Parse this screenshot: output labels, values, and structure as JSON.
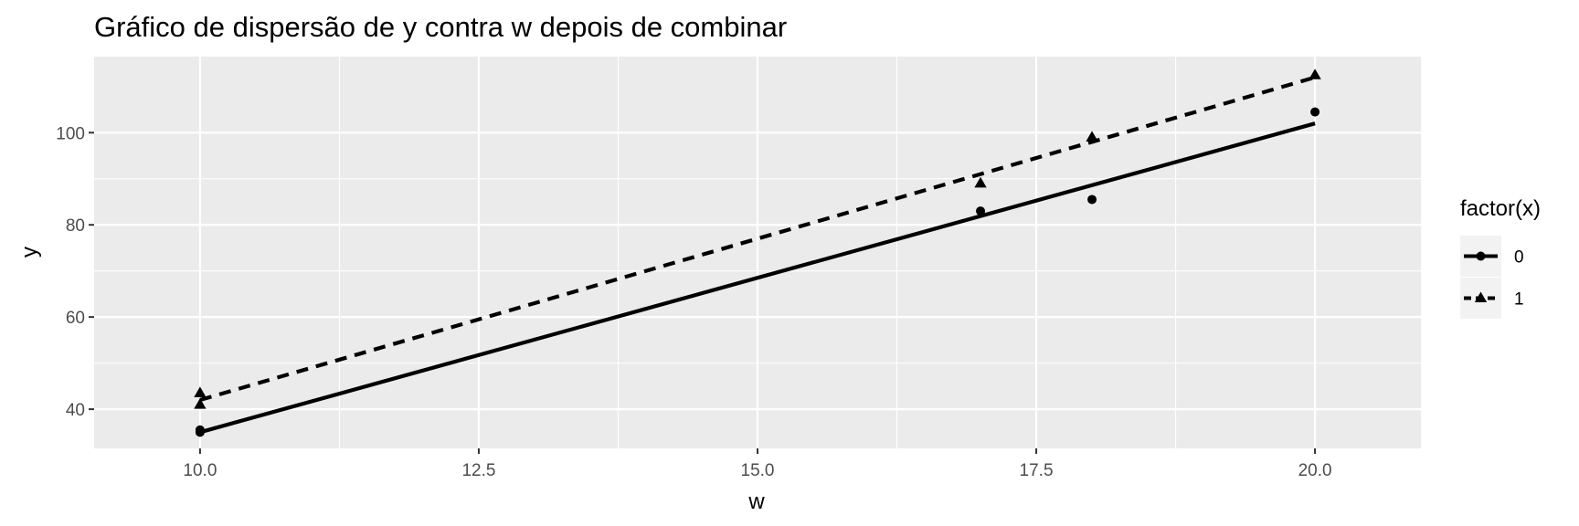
{
  "chart_data": {
    "type": "scatter",
    "title": "Gráfico de dispersão de y contra w depois de combinar",
    "xlabel": "w",
    "ylabel": "y",
    "xlim": [
      9.05,
      20.95
    ],
    "ylim": [
      31.5,
      116.5
    ],
    "x_ticks": [
      10.0,
      12.5,
      15.0,
      17.5,
      20.0
    ],
    "x_tick_labels": [
      "10.0",
      "12.5",
      "15.0",
      "17.5",
      "20.0"
    ],
    "y_ticks": [
      40,
      60,
      80,
      100
    ],
    "y_tick_labels": [
      "40",
      "60",
      "80",
      "100"
    ],
    "grid": true,
    "legend": {
      "title": "factor(x)",
      "placement": "right"
    },
    "series": [
      {
        "name": "0",
        "marker": "circle",
        "line_style": "solid",
        "points": [
          {
            "x": 10,
            "y": 35.5
          },
          {
            "x": 10,
            "y": 35.0
          },
          {
            "x": 17,
            "y": 83.0
          },
          {
            "x": 18,
            "y": 85.5
          },
          {
            "x": 20,
            "y": 104.5
          }
        ],
        "fit_line": [
          {
            "x": 10,
            "y": 35.0
          },
          {
            "x": 20,
            "y": 102.0
          }
        ]
      },
      {
        "name": "1",
        "marker": "triangle",
        "line_style": "dashed",
        "points": [
          {
            "x": 10,
            "y": 43.5
          },
          {
            "x": 10,
            "y": 41.0
          },
          {
            "x": 17,
            "y": 89.0
          },
          {
            "x": 18,
            "y": 99.0
          },
          {
            "x": 20,
            "y": 112.5
          }
        ],
        "fit_line": [
          {
            "x": 10,
            "y": 42.0
          },
          {
            "x": 20,
            "y": 112.0
          }
        ]
      }
    ],
    "colors": {
      "panel": "#ebebeb",
      "grid": "#ffffff",
      "ink": "#000000",
      "tick_text": "#4d4d4d",
      "legend_key_bg": "#f2f2f2"
    }
  }
}
